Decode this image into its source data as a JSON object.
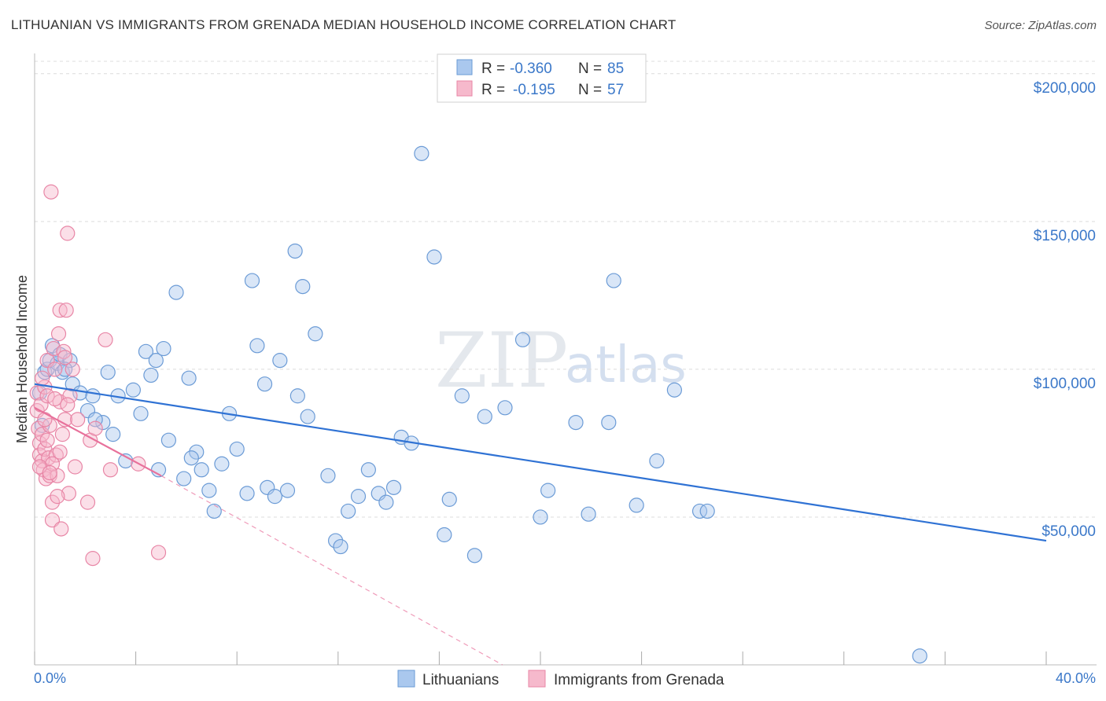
{
  "title": "LITHUANIAN VS IMMIGRANTS FROM GRENADA MEDIAN HOUSEHOLD INCOME CORRELATION CHART",
  "source": "Source: ZipAtlas.com",
  "watermark": {
    "zip": "ZIP",
    "atlas": "atlas"
  },
  "legend": {
    "r_label": "R =",
    "n_label": "N =",
    "series": [
      {
        "r": "-0.360",
        "n": "85"
      },
      {
        "r": "-0.195",
        "n": "57"
      }
    ]
  },
  "colors": {
    "blue_fill": "#aac8ee",
    "blue_stroke": "#6b9bd6",
    "blue_line": "#2f72d4",
    "pink_fill": "#f6b9cc",
    "pink_stroke": "#e886a6",
    "pink_line": "#e8719b",
    "grid": "#dcdcdc"
  },
  "chart_data": {
    "type": "scatter",
    "title": "LITHUANIAN VS IMMIGRANTS FROM GRENADA MEDIAN HOUSEHOLD INCOME CORRELATION CHART",
    "xlabel": "",
    "ylabel": "Median Household Income",
    "xlim": [
      0,
      40
    ],
    "ylim": [
      0,
      205000
    ],
    "x_tick_labels": [
      "0.0%",
      "40.0%"
    ],
    "y_ticks": [
      50000,
      100000,
      150000,
      200000
    ],
    "y_tick_labels": [
      "$50,000",
      "$100,000",
      "$150,000",
      "$200,000"
    ],
    "series": [
      {
        "name": "Lithuanians",
        "color": "blue",
        "trend": {
          "x": [
            0,
            40
          ],
          "y": [
            95000,
            42000
          ]
        },
        "points": [
          [
            0.2,
            92000
          ],
          [
            0.4,
            99000
          ],
          [
            0.5,
            100000
          ],
          [
            0.6,
            103000
          ],
          [
            0.7,
            108000
          ],
          [
            0.9,
            102000
          ],
          [
            1.0,
            105000
          ],
          [
            1.1,
            99000
          ],
          [
            1.4,
            103000
          ],
          [
            1.5,
            95000
          ],
          [
            1.8,
            92000
          ],
          [
            2.1,
            86000
          ],
          [
            2.3,
            91000
          ],
          [
            2.7,
            82000
          ],
          [
            2.9,
            99000
          ],
          [
            3.1,
            78000
          ],
          [
            3.3,
            91000
          ],
          [
            3.6,
            69000
          ],
          [
            3.9,
            93000
          ],
          [
            4.2,
            85000
          ],
          [
            4.4,
            106000
          ],
          [
            4.6,
            98000
          ],
          [
            4.8,
            103000
          ],
          [
            4.9,
            66000
          ],
          [
            5.1,
            107000
          ],
          [
            5.3,
            76000
          ],
          [
            5.6,
            126000
          ],
          [
            5.9,
            63000
          ],
          [
            6.1,
            97000
          ],
          [
            6.4,
            72000
          ],
          [
            6.6,
            66000
          ],
          [
            6.9,
            59000
          ],
          [
            7.1,
            52000
          ],
          [
            7.4,
            68000
          ],
          [
            7.7,
            85000
          ],
          [
            8.0,
            73000
          ],
          [
            8.4,
            58000
          ],
          [
            8.6,
            130000
          ],
          [
            8.8,
            108000
          ],
          [
            9.1,
            95000
          ],
          [
            9.2,
            60000
          ],
          [
            9.5,
            57000
          ],
          [
            9.7,
            103000
          ],
          [
            10.0,
            59000
          ],
          [
            10.3,
            140000
          ],
          [
            10.4,
            91000
          ],
          [
            10.6,
            128000
          ],
          [
            10.8,
            84000
          ],
          [
            11.1,
            112000
          ],
          [
            11.6,
            64000
          ],
          [
            11.9,
            42000
          ],
          [
            12.1,
            40000
          ],
          [
            12.4,
            52000
          ],
          [
            12.8,
            57000
          ],
          [
            13.2,
            66000
          ],
          [
            13.6,
            58000
          ],
          [
            13.9,
            55000
          ],
          [
            14.2,
            60000
          ],
          [
            14.5,
            77000
          ],
          [
            14.9,
            75000
          ],
          [
            15.3,
            173000
          ],
          [
            15.8,
            138000
          ],
          [
            16.2,
            44000
          ],
          [
            16.4,
            56000
          ],
          [
            16.9,
            91000
          ],
          [
            17.4,
            37000
          ],
          [
            17.8,
            84000
          ],
          [
            18.6,
            87000
          ],
          [
            19.3,
            110000
          ],
          [
            20.0,
            50000
          ],
          [
            20.3,
            59000
          ],
          [
            21.4,
            82000
          ],
          [
            21.9,
            51000
          ],
          [
            22.7,
            82000
          ],
          [
            22.9,
            130000
          ],
          [
            23.8,
            54000
          ],
          [
            24.6,
            69000
          ],
          [
            25.3,
            93000
          ],
          [
            26.3,
            52000
          ],
          [
            26.6,
            52000
          ],
          [
            35.0,
            3000
          ],
          [
            0.3,
            81000
          ],
          [
            1.2,
            100000
          ],
          [
            2.4,
            83000
          ],
          [
            6.2,
            70000
          ]
        ]
      },
      {
        "name": "Immigrants from Grenada",
        "color": "pink",
        "trend": {
          "x": [
            0,
            5.0
          ],
          "y": [
            87000,
            64000
          ]
        },
        "trend_extended": {
          "x": [
            5.0,
            18.5
          ],
          "y": [
            64000,
            0
          ]
        },
        "points": [
          [
            0.1,
            92000
          ],
          [
            0.1,
            86000
          ],
          [
            0.15,
            80000
          ],
          [
            0.2,
            75000
          ],
          [
            0.2,
            71000
          ],
          [
            0.25,
            88000
          ],
          [
            0.3,
            69000
          ],
          [
            0.3,
            78000
          ],
          [
            0.35,
            66000
          ],
          [
            0.4,
            94000
          ],
          [
            0.4,
            73000
          ],
          [
            0.45,
            63000
          ],
          [
            0.5,
            103000
          ],
          [
            0.5,
            91000
          ],
          [
            0.55,
            70000
          ],
          [
            0.6,
            81000
          ],
          [
            0.6,
            64000
          ],
          [
            0.65,
            160000
          ],
          [
            0.7,
            55000
          ],
          [
            0.7,
            49000
          ],
          [
            0.75,
            107000
          ],
          [
            0.8,
            100000
          ],
          [
            0.85,
            71000
          ],
          [
            0.9,
            64000
          ],
          [
            0.95,
            112000
          ],
          [
            1.0,
            120000
          ],
          [
            1.0,
            89000
          ],
          [
            1.05,
            46000
          ],
          [
            1.1,
            78000
          ],
          [
            1.15,
            106000
          ],
          [
            1.2,
            83000
          ],
          [
            1.25,
            120000
          ],
          [
            1.3,
            146000
          ],
          [
            1.35,
            58000
          ],
          [
            1.4,
            91000
          ],
          [
            1.5,
            100000
          ],
          [
            1.6,
            67000
          ],
          [
            1.7,
            83000
          ],
          [
            2.1,
            55000
          ],
          [
            2.2,
            76000
          ],
          [
            2.3,
            36000
          ],
          [
            2.4,
            80000
          ],
          [
            2.8,
            110000
          ],
          [
            3.0,
            66000
          ],
          [
            4.1,
            68000
          ],
          [
            4.9,
            38000
          ],
          [
            0.3,
            97000
          ],
          [
            0.5,
            76000
          ],
          [
            0.7,
            68000
          ],
          [
            0.9,
            57000
          ],
          [
            1.2,
            104000
          ],
          [
            1.3,
            88000
          ],
          [
            0.2,
            67000
          ],
          [
            0.4,
            83000
          ],
          [
            0.6,
            65000
          ],
          [
            0.8,
            90000
          ],
          [
            1.0,
            72000
          ]
        ]
      }
    ]
  }
}
